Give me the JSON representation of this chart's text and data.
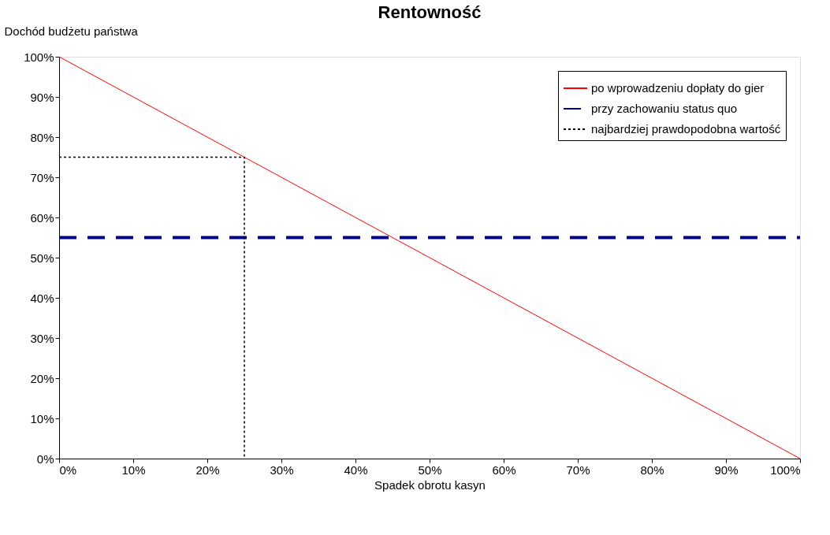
{
  "chart_data": {
    "type": "line",
    "title": "Rentowność",
    "xlabel": "Spadek obrotu kasyn",
    "ylabel": "Dochód budżetu państwa",
    "xlim": [
      0,
      100
    ],
    "ylim": [
      0,
      100
    ],
    "xticks": [
      {
        "value": 0,
        "label": "0%"
      },
      {
        "value": 10,
        "label": "10%"
      },
      {
        "value": 20,
        "label": "20%"
      },
      {
        "value": 30,
        "label": "30%"
      },
      {
        "value": 40,
        "label": "40%"
      },
      {
        "value": 50,
        "label": "50%"
      },
      {
        "value": 60,
        "label": "60%"
      },
      {
        "value": 70,
        "label": "70%"
      },
      {
        "value": 80,
        "label": "80%"
      },
      {
        "value": 90,
        "label": "90%"
      },
      {
        "value": 100,
        "label": "100%"
      }
    ],
    "yticks": [
      {
        "value": 0,
        "label": "0%"
      },
      {
        "value": 10,
        "label": "10%"
      },
      {
        "value": 20,
        "label": "20%"
      },
      {
        "value": 30,
        "label": "30%"
      },
      {
        "value": 40,
        "label": "40%"
      },
      {
        "value": 50,
        "label": "50%"
      },
      {
        "value": 60,
        "label": "60%"
      },
      {
        "value": 70,
        "label": "70%"
      },
      {
        "value": 80,
        "label": "80%"
      },
      {
        "value": 90,
        "label": "90%"
      },
      {
        "value": 100,
        "label": "100%"
      }
    ],
    "grid": false,
    "legend": "top right",
    "marker": "none",
    "series": [
      {
        "name": "po wprowadzeniu dopłaty do gier",
        "color": "#ff0000",
        "line_style": "solid",
        "x": [
          0,
          100
        ],
        "values": [
          100,
          0
        ]
      },
      {
        "name": "przy zachowaniu status quo",
        "color": "#000080",
        "line_style": "dashed",
        "x": [
          0,
          100
        ],
        "values": [
          55,
          55
        ]
      },
      {
        "name": "najbardziej prawdopodobna wartość",
        "color": "#000000",
        "line_style": "dotted",
        "x": [
          0,
          25,
          25
        ],
        "values": [
          75,
          75,
          0
        ]
      }
    ]
  }
}
